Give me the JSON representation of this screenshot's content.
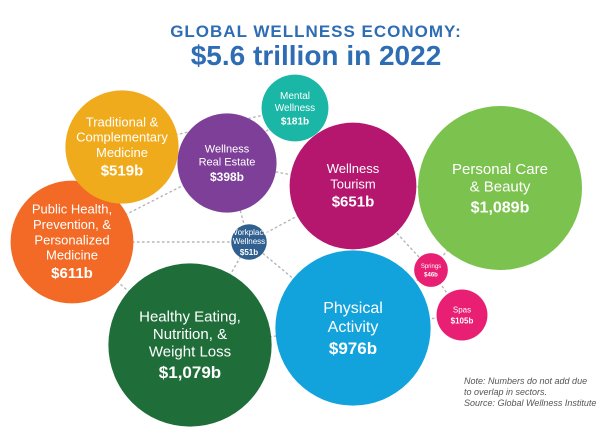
{
  "chart_data": {
    "type": "bubble",
    "title": "GLOBAL WELLNESS ECONOMY:",
    "subtitle": "$5.6 trillion in 2022",
    "unit": "b",
    "series": [
      {
        "name": "Personal Care & Beauty",
        "label_lines": [
          "Personal Care",
          "& Beauty"
        ],
        "value": 1089,
        "value_label": "$1,089b",
        "color": "#7cc24e"
      },
      {
        "name": "Healthy Eating, Nutrition, & Weight Loss",
        "label_lines": [
          "Healthy Eating,",
          "Nutrition, &",
          "Weight Loss"
        ],
        "value": 1079,
        "value_label": "$1,079b",
        "color": "#1f6e3a"
      },
      {
        "name": "Physical Activity",
        "label_lines": [
          "Physical",
          "Activity"
        ],
        "value": 976,
        "value_label": "$976b",
        "color": "#12a3dc"
      },
      {
        "name": "Wellness Tourism",
        "label_lines": [
          "Wellness",
          "Tourism"
        ],
        "value": 651,
        "value_label": "$651b",
        "color": "#b5176f"
      },
      {
        "name": "Public Health, Prevention, & Personalized Medicine",
        "label_lines": [
          "Public Health,",
          "Prevention, &",
          "Personalized",
          "Medicine"
        ],
        "value": 611,
        "value_label": "$611b",
        "color": "#f26a25"
      },
      {
        "name": "Traditional & Complementary Medicine",
        "label_lines": [
          "Traditional &",
          "Complementary",
          "Medicine"
        ],
        "value": 519,
        "value_label": "$519b",
        "color": "#f0ab1c"
      },
      {
        "name": "Wellness Real Estate",
        "label_lines": [
          "Wellness",
          "Real Estate"
        ],
        "value": 398,
        "value_label": "$398b",
        "color": "#7d3f98"
      },
      {
        "name": "Mental Wellness",
        "label_lines": [
          "Mental",
          "Wellness"
        ],
        "value": 181,
        "value_label": "$181b",
        "color": "#1ab7a6"
      },
      {
        "name": "Spas",
        "label_lines": [
          "Spas"
        ],
        "value": 105,
        "value_label": "$105b",
        "color": "#e81f72"
      },
      {
        "name": "Workplace Wellness",
        "label_lines": [
          "Workplace",
          "Wellness"
        ],
        "value": 51,
        "value_label": "$51b",
        "color": "#2f6090"
      },
      {
        "name": "Springs",
        "label_lines": [
          "Springs"
        ],
        "value": 46,
        "value_label": "$46b",
        "color": "#e81f72"
      }
    ],
    "notes": [
      "Note: Numbers do not add due",
      "to overlap in sectors."
    ],
    "source": "Source: Global Wellness Institute"
  }
}
